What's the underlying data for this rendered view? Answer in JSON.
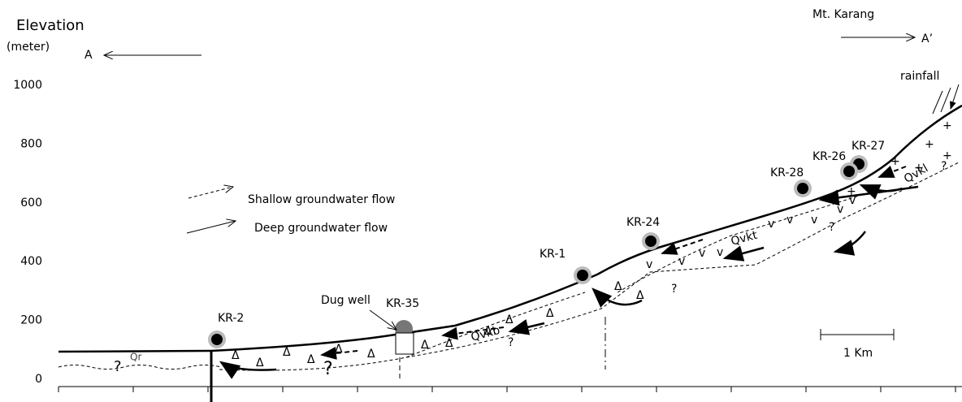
{
  "axis": {
    "title": "Elevation",
    "unit": "(meter)",
    "ticks": [
      0,
      200,
      400,
      600,
      800,
      1000
    ]
  },
  "direction": {
    "start": "A",
    "end": "A’",
    "peak": "Mt. Karang"
  },
  "legend": [
    {
      "label": "Shallow groundwater flow"
    },
    {
      "label": "Deep groundwater flow"
    }
  ],
  "wells": [
    {
      "label": "KR-2"
    },
    {
      "label": "KR-35"
    },
    {
      "label": "KR-1"
    },
    {
      "label": "KR-24"
    },
    {
      "label": "KR-28"
    },
    {
      "label": "KR-26"
    },
    {
      "label": "KR-27"
    }
  ],
  "annotations": {
    "rainfall": "rainfall",
    "dug_well": "Dug well",
    "scale": "1 Km",
    "unknown": "?"
  },
  "units": [
    "Qr",
    "Qvkb",
    "Qvkt",
    "Qvkl"
  ]
}
